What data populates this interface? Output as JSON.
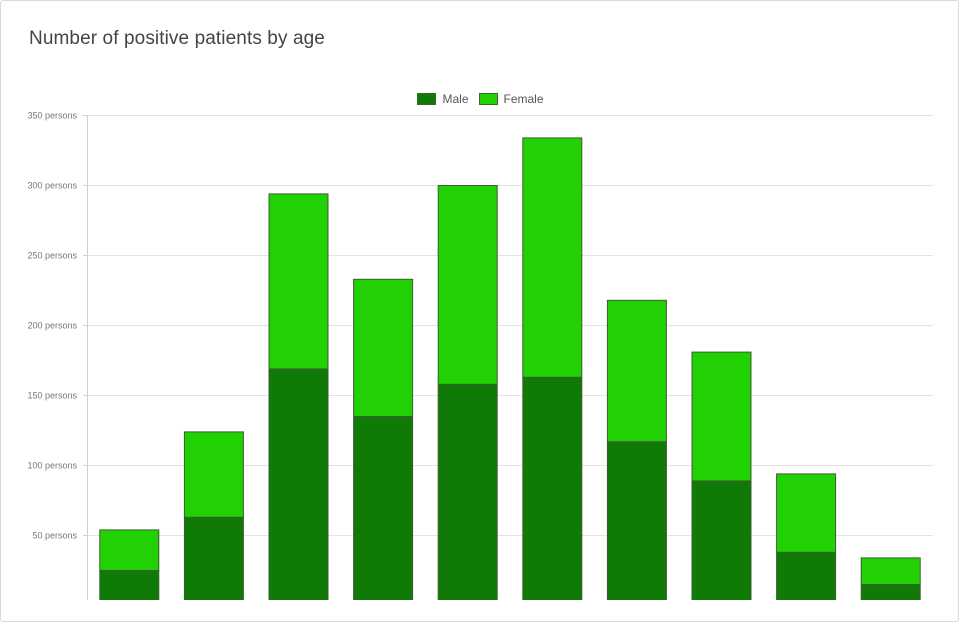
{
  "chart_data": {
    "type": "bar",
    "stacked": true,
    "title": "Number of positive patients by age",
    "legend_position": "top",
    "series": [
      {
        "name": "Male",
        "color": "#0f7a05",
        "values": [
          25,
          63,
          169,
          135,
          158,
          163,
          117,
          89,
          38,
          15
        ]
      },
      {
        "name": "Female",
        "color": "#22d103",
        "values": [
          29,
          61,
          125,
          98,
          142,
          171,
          101,
          92,
          56,
          19
        ]
      }
    ],
    "y_ticks": [
      "350 persons",
      "300 persons",
      "250 persons",
      "200 persons",
      "150 persons",
      "100 persons",
      "50 persons"
    ],
    "ylim": [
      0,
      350
    ],
    "grid": true
  }
}
